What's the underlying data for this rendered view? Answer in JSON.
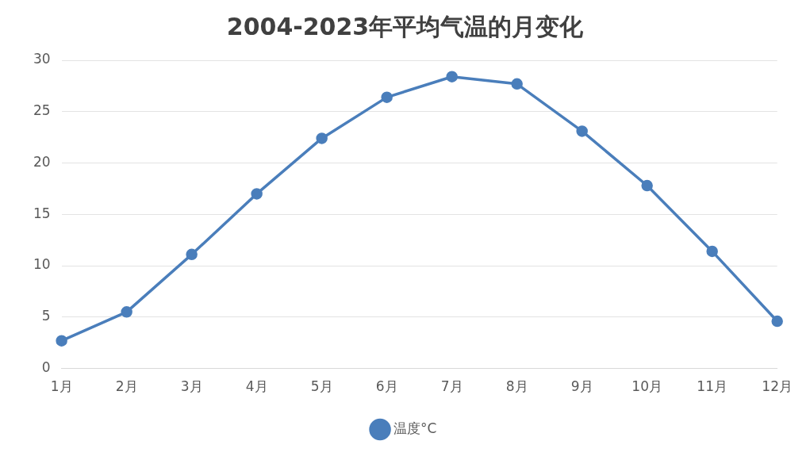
{
  "chart_data": {
    "type": "line",
    "title": "2004-2023年平均气温的月变化",
    "categories": [
      "1月",
      "2月",
      "3月",
      "4月",
      "5月",
      "6月",
      "7月",
      "8月",
      "9月",
      "10月",
      "11月",
      "12月"
    ],
    "series": [
      {
        "name": "温度°C",
        "color": "#4a7ebb",
        "values": [
          2.7,
          5.5,
          11.1,
          17.0,
          22.4,
          26.4,
          28.4,
          27.7,
          23.1,
          17.8,
          11.4,
          4.6
        ]
      }
    ],
    "ylim": [
      0,
      30
    ],
    "yticks": [
      0,
      5,
      10,
      15,
      20,
      25,
      30
    ],
    "grid": "y",
    "legend": "bottom",
    "marker": "circle",
    "line_style": "solid"
  }
}
